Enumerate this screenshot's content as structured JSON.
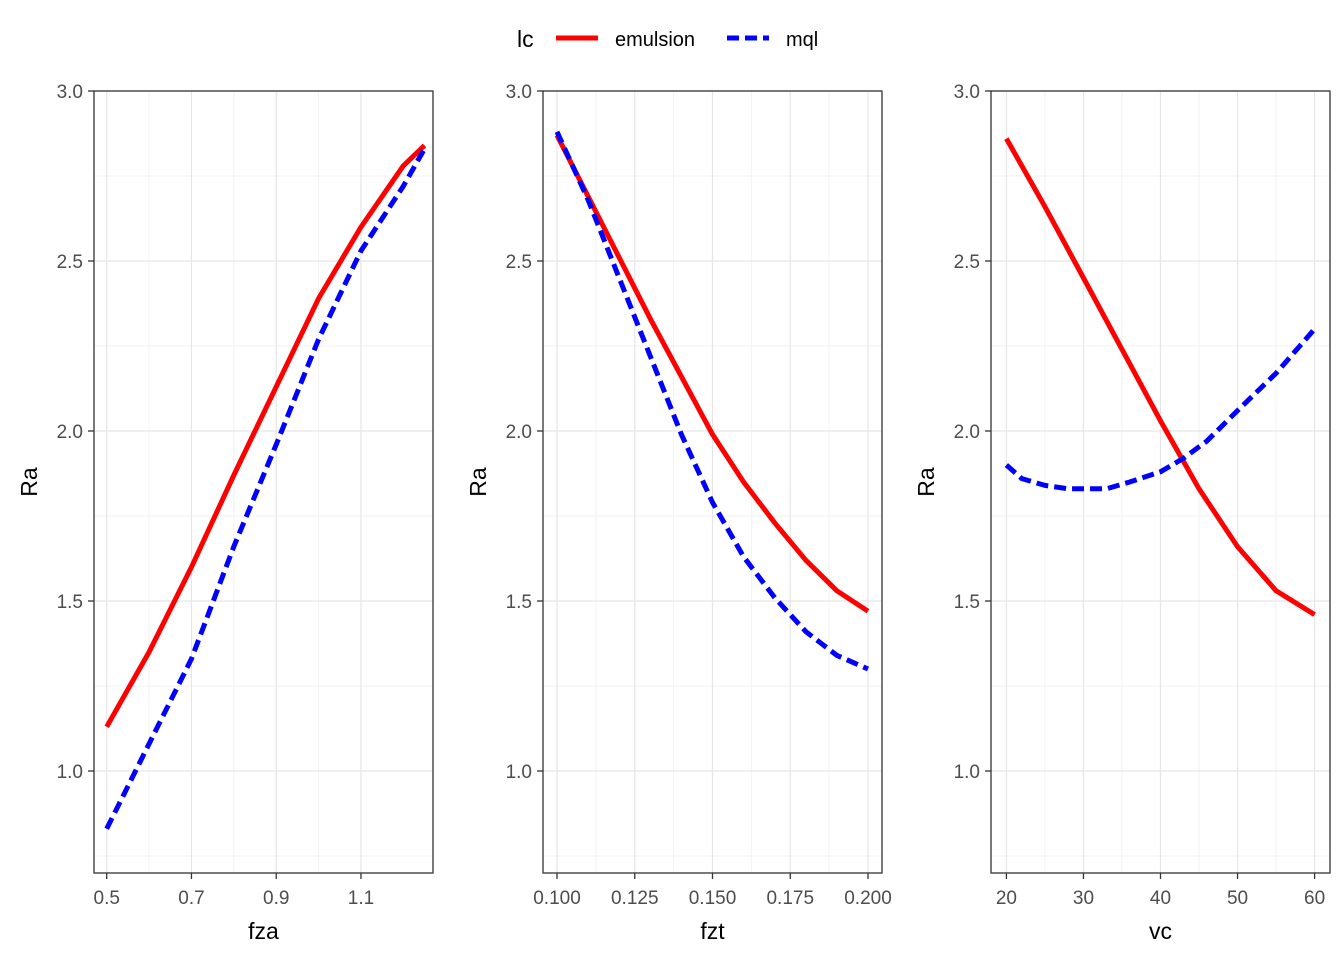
{
  "legend": {
    "title": "lc",
    "items": [
      {
        "label": "emulsion",
        "color": "#ff0000",
        "dash": "solid"
      },
      {
        "label": "mql",
        "color": "#0000ff",
        "dash": "dashed"
      }
    ],
    "placement": "top-center"
  },
  "chart_data": [
    {
      "type": "line",
      "xlabel": "fza",
      "ylabel": "Ra",
      "xlim": [
        0.47,
        1.27
      ],
      "ylim": [
        0.7,
        3.0
      ],
      "xticks": [
        0.5,
        0.7,
        0.9,
        1.1
      ],
      "xtick_labels": [
        "0.5",
        "0.7",
        "0.9",
        "1.1"
      ],
      "yticks": [
        1.0,
        1.5,
        2.0,
        2.5,
        3.0
      ],
      "ytick_labels": [
        "1.0",
        "1.5",
        "2.0",
        "2.5",
        "3.0"
      ],
      "grid": true,
      "series": [
        {
          "name": "emulsion",
          "color": "#ff0000",
          "dash": "solid",
          "x": [
            0.5,
            0.6,
            0.7,
            0.8,
            0.9,
            1.0,
            1.1,
            1.2,
            1.25
          ],
          "y": [
            1.13,
            1.35,
            1.6,
            1.87,
            2.13,
            2.39,
            2.6,
            2.78,
            2.84
          ]
        },
        {
          "name": "mql",
          "color": "#0000ff",
          "dash": "dashed",
          "x": [
            0.5,
            0.6,
            0.7,
            0.8,
            0.9,
            1.0,
            1.1,
            1.2,
            1.25
          ],
          "y": [
            0.83,
            1.08,
            1.33,
            1.66,
            1.96,
            2.27,
            2.53,
            2.72,
            2.83
          ]
        }
      ]
    },
    {
      "type": "line",
      "xlabel": "fzt",
      "ylabel": "Ra",
      "xlim": [
        0.0955,
        0.2045
      ],
      "ylim": [
        0.7,
        3.0
      ],
      "xticks": [
        0.1,
        0.125,
        0.15,
        0.175,
        0.2
      ],
      "xtick_labels": [
        "0.100",
        "0.125",
        "0.150",
        "0.175",
        "0.200"
      ],
      "yticks": [
        1.0,
        1.5,
        2.0,
        2.5,
        3.0
      ],
      "ytick_labels": [
        "1.0",
        "1.5",
        "2.0",
        "2.5",
        "3.0"
      ],
      "grid": true,
      "series": [
        {
          "name": "emulsion",
          "color": "#ff0000",
          "dash": "solid",
          "x": [
            0.1,
            0.11,
            0.12,
            0.13,
            0.14,
            0.15,
            0.16,
            0.17,
            0.18,
            0.19,
            0.2
          ],
          "y": [
            2.87,
            2.69,
            2.51,
            2.33,
            2.16,
            1.99,
            1.85,
            1.73,
            1.62,
            1.53,
            1.47
          ]
        },
        {
          "name": "mql",
          "color": "#0000ff",
          "dash": "dashed",
          "x": [
            0.1,
            0.11,
            0.12,
            0.13,
            0.14,
            0.15,
            0.16,
            0.17,
            0.18,
            0.19,
            0.2
          ],
          "y": [
            2.88,
            2.68,
            2.45,
            2.22,
            1.99,
            1.79,
            1.63,
            1.51,
            1.41,
            1.34,
            1.3
          ]
        }
      ]
    },
    {
      "type": "line",
      "xlabel": "vc",
      "ylabel": "Ra",
      "xlim": [
        18,
        62
      ],
      "ylim": [
        0.7,
        3.0
      ],
      "xticks": [
        20,
        30,
        40,
        50,
        60
      ],
      "xtick_labels": [
        "20",
        "30",
        "40",
        "50",
        "60"
      ],
      "yticks": [
        1.0,
        1.5,
        2.0,
        2.5,
        3.0
      ],
      "ytick_labels": [
        "1.0",
        "1.5",
        "2.0",
        "2.5",
        "3.0"
      ],
      "grid": true,
      "series": [
        {
          "name": "emulsion",
          "color": "#ff0000",
          "dash": "solid",
          "x": [
            20,
            25,
            30,
            35,
            40,
            43,
            45,
            50,
            55,
            60
          ],
          "y": [
            2.86,
            2.66,
            2.45,
            2.24,
            2.03,
            1.91,
            1.83,
            1.66,
            1.53,
            1.46
          ]
        },
        {
          "name": "mql",
          "color": "#0000ff",
          "dash": "dashed",
          "x": [
            20,
            22,
            25,
            28,
            30,
            33,
            36,
            40,
            43,
            46,
            50,
            55,
            60
          ],
          "y": [
            1.9,
            1.86,
            1.84,
            1.83,
            1.83,
            1.83,
            1.85,
            1.88,
            1.92,
            1.97,
            2.06,
            2.17,
            2.3
          ]
        }
      ]
    }
  ]
}
